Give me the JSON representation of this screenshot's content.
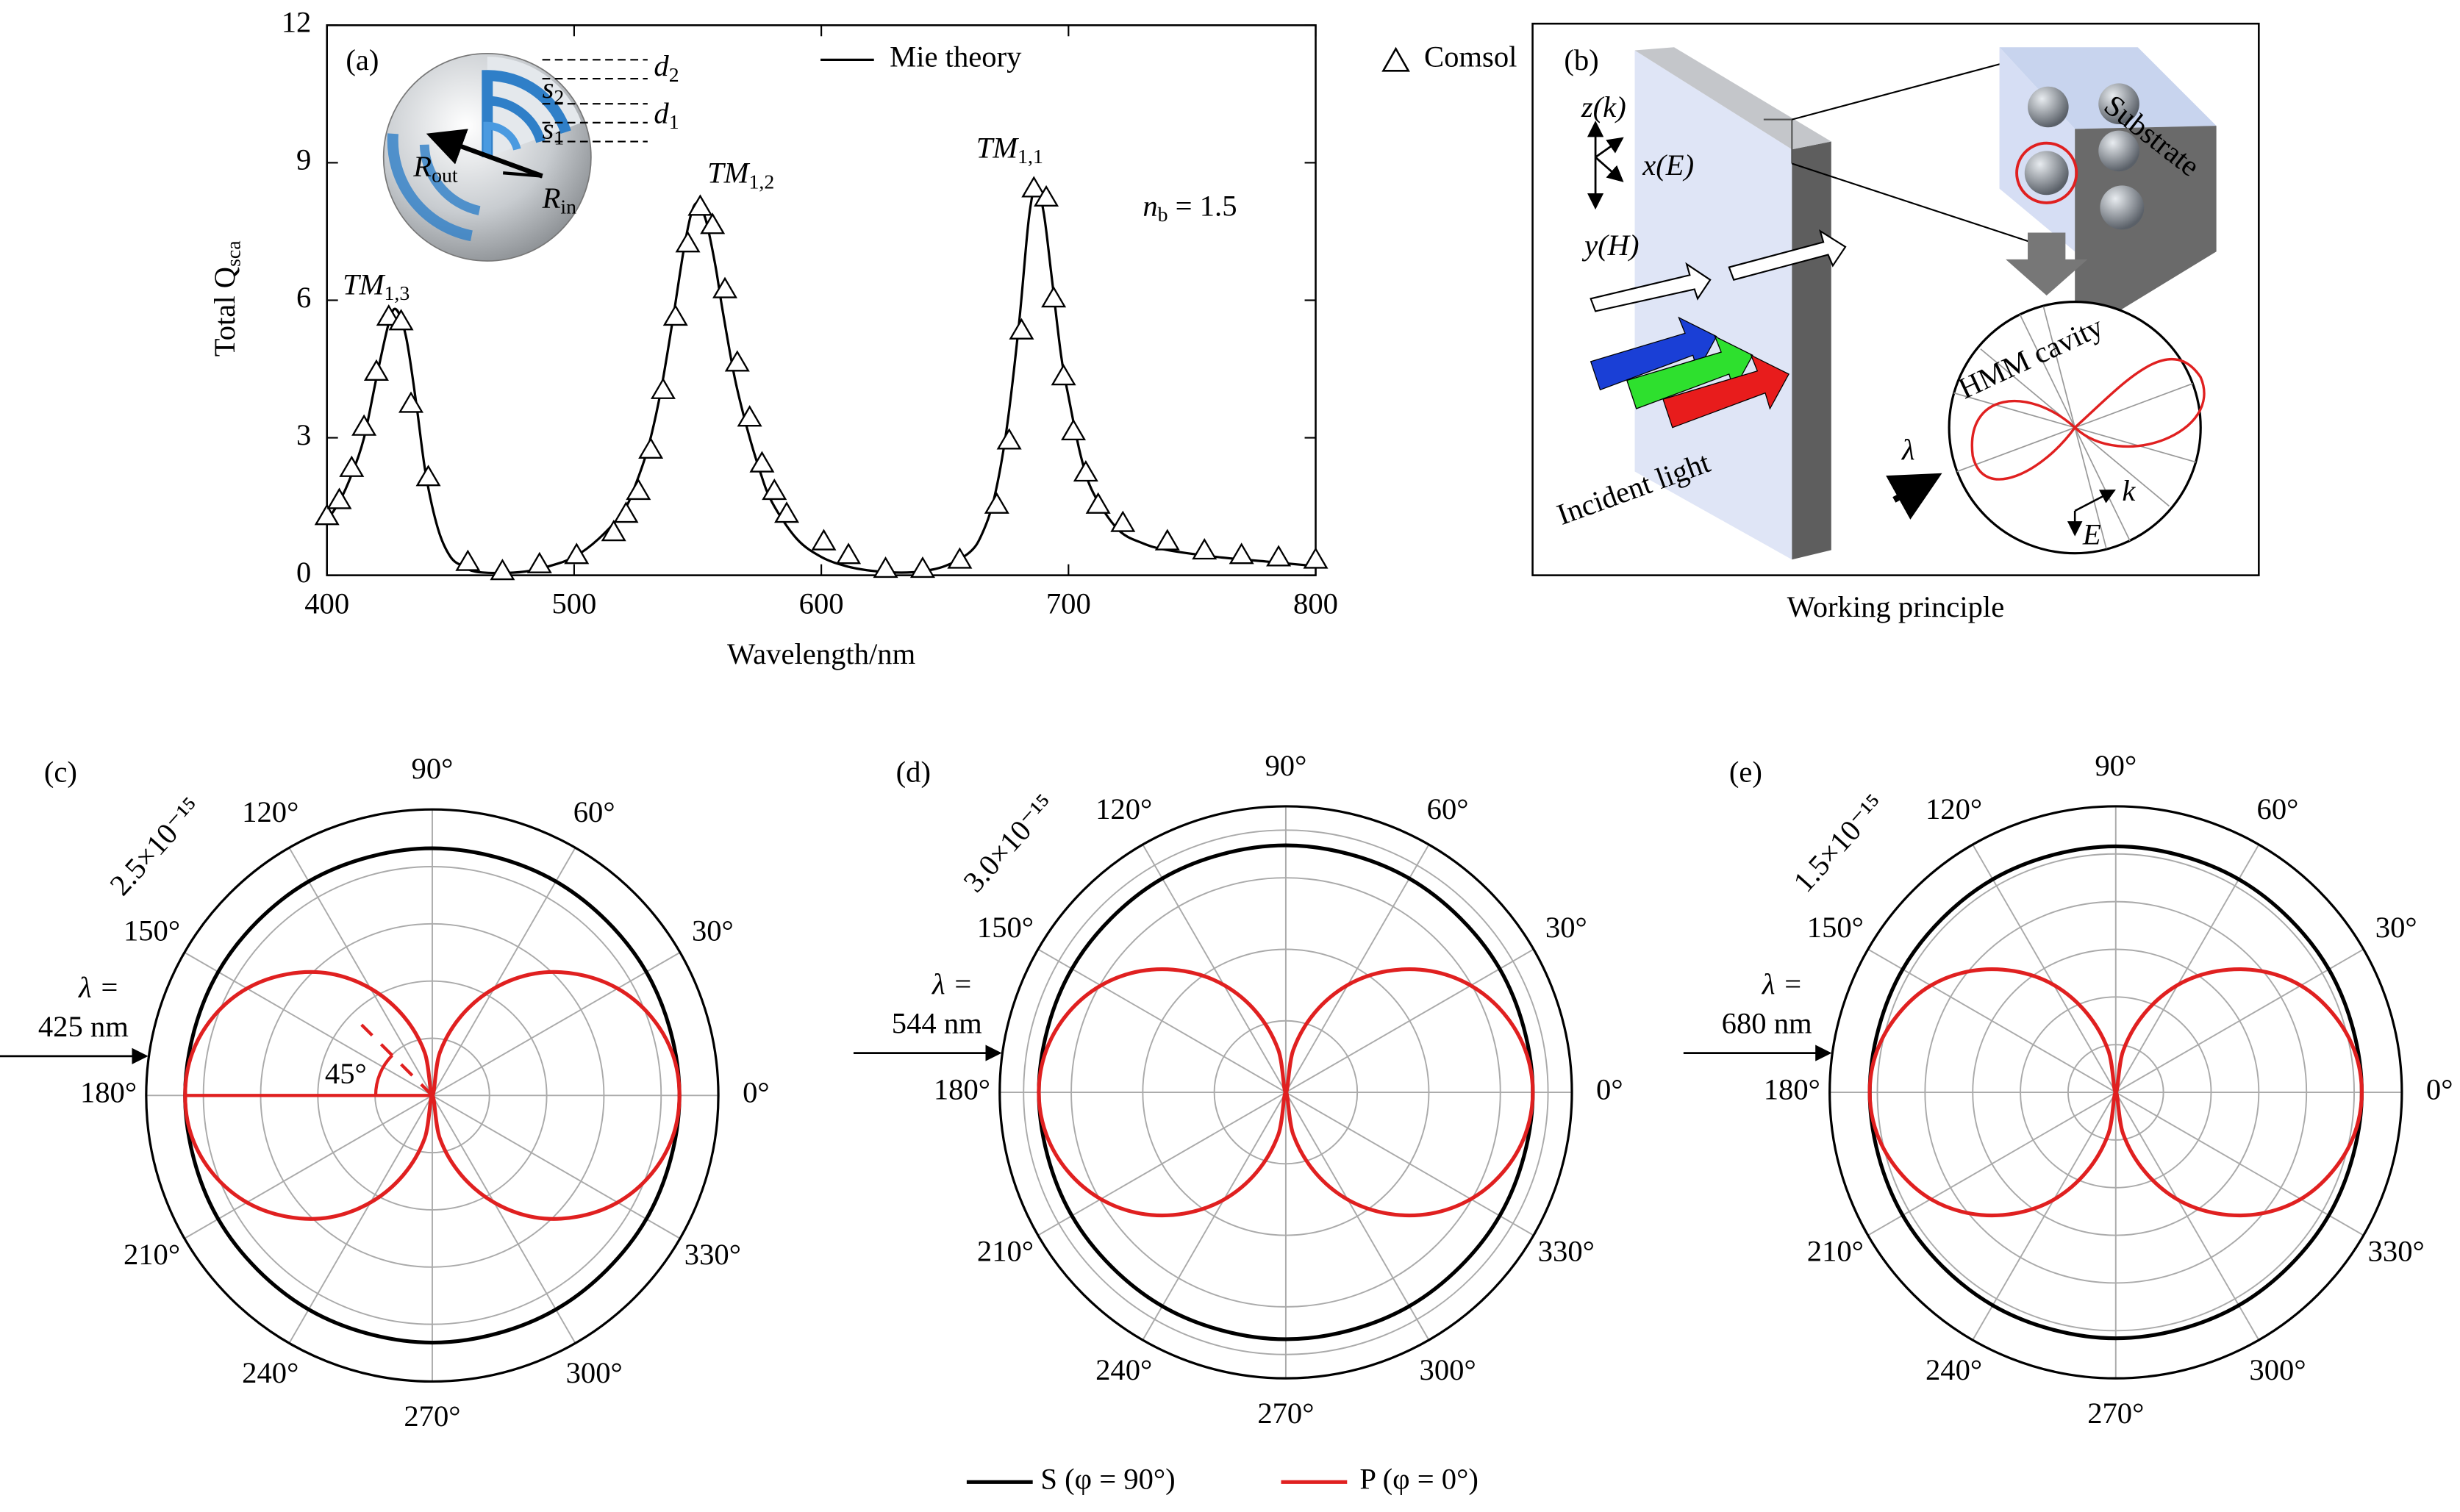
{
  "chart_data": [
    {
      "type": "line",
      "panel_label": "(a)",
      "xlabel": "Wavelength/nm",
      "ylabel": "Total Q",
      "ylabel_sub": "sca",
      "xlim": [
        400,
        800
      ],
      "xticks": [
        400,
        500,
        600,
        700,
        800
      ],
      "ylim": [
        0,
        12
      ],
      "yticks": [
        0,
        3,
        6,
        9,
        12
      ],
      "legend": "upper right",
      "series": [
        {
          "name": "Mie theory",
          "color": "#000000",
          "marker": "none",
          "x": [
            400,
            405,
            410,
            415,
            420,
            425,
            428,
            432,
            436,
            440,
            445,
            450,
            455,
            460,
            470,
            480,
            490,
            500,
            510,
            520,
            525,
            530,
            535,
            540,
            545,
            549,
            553,
            557,
            560,
            565,
            570,
            575,
            580,
            590,
            600,
            610,
            620,
            630,
            640,
            650,
            660,
            665,
            670,
            675,
            680,
            684,
            687,
            690,
            693,
            697,
            700,
            705,
            710,
            720,
            730,
            740,
            760,
            780,
            800
          ],
          "values": [
            1.2,
            1.6,
            2.2,
            3.0,
            4.3,
            5.5,
            5.8,
            5.2,
            3.8,
            2.2,
            1.0,
            0.4,
            0.2,
            0.08,
            0.05,
            0.08,
            0.2,
            0.4,
            0.8,
            1.4,
            2.0,
            2.8,
            4.0,
            5.6,
            7.3,
            8.1,
            7.8,
            6.8,
            5.8,
            4.3,
            3.2,
            2.3,
            1.6,
            0.8,
            0.4,
            0.2,
            0.1,
            0.06,
            0.08,
            0.2,
            0.5,
            0.9,
            1.7,
            3.2,
            5.5,
            7.8,
            8.5,
            7.9,
            6.6,
            4.8,
            3.9,
            2.6,
            1.8,
            1.0,
            0.7,
            0.55,
            0.4,
            0.3,
            0.2
          ]
        },
        {
          "name": "Comsol",
          "color": "#000000",
          "marker": "triangle",
          "x": [
            400,
            405,
            410,
            415,
            420,
            425,
            430,
            434,
            441,
            457,
            471,
            486,
            501,
            516,
            521,
            526,
            531,
            536,
            541,
            546,
            551,
            556,
            561,
            566,
            571,
            576,
            581,
            586,
            601,
            611,
            626,
            641,
            656,
            671,
            676,
            681,
            686,
            691,
            694,
            698,
            702,
            707,
            712,
            722,
            740,
            755,
            770,
            785,
            800
          ],
          "values": [
            1.25,
            1.6,
            2.3,
            3.2,
            4.4,
            5.6,
            5.5,
            3.7,
            2.1,
            0.25,
            0.05,
            0.2,
            0.4,
            0.9,
            1.3,
            1.8,
            2.7,
            4.0,
            5.6,
            7.2,
            8.0,
            7.6,
            6.2,
            4.6,
            3.4,
            2.4,
            1.8,
            1.3,
            0.7,
            0.4,
            0.1,
            0.1,
            0.3,
            1.5,
            2.9,
            5.3,
            8.4,
            8.2,
            6.0,
            4.3,
            3.1,
            2.2,
            1.5,
            1.1,
            0.7,
            0.5,
            0.4,
            0.35,
            0.3
          ]
        }
      ],
      "annotations": [
        {
          "text": "TM",
          "sub": "1,3"
        },
        {
          "text": "TM",
          "sub": "1,2"
        },
        {
          "text": "TM",
          "sub": "1,1"
        },
        {
          "text": "n",
          "sub": "b",
          "rest": " = 1.5"
        }
      ],
      "inset_labels": [
        {
          "text": "s",
          "sub": "2"
        },
        {
          "text": "s",
          "sub": "1"
        },
        {
          "text": "d",
          "sub": "2"
        },
        {
          "text": "d",
          "sub": "1"
        },
        {
          "text": "R",
          "sub": "out"
        },
        {
          "text": "R",
          "sub": "in"
        }
      ]
    },
    {
      "type": "polar",
      "panel_label": "(c)",
      "grid": true,
      "rlim": [
        0,
        2.5e-15
      ],
      "rticks": [
        {
          "value": 2.5e-15,
          "label": "2.5×10⁻¹⁵"
        }
      ],
      "rgrid": [
        5e-16,
        1e-15,
        1.5e-15,
        2e-15
      ],
      "thetaticks": [
        {
          "value": 0,
          "label": "0°"
        },
        {
          "value": 30,
          "label": "30°"
        },
        {
          "value": 60,
          "label": "60°"
        },
        {
          "value": 90,
          "label": "90°"
        },
        {
          "value": 120,
          "label": "120°"
        },
        {
          "value": 150,
          "label": "150°"
        },
        {
          "value": 180,
          "label": "180°"
        },
        {
          "value": 210,
          "label": "210°"
        },
        {
          "value": 240,
          "label": "240°"
        },
        {
          "value": 270,
          "label": "270°"
        },
        {
          "value": 300,
          "label": "300°"
        },
        {
          "value": 330,
          "label": "330°"
        }
      ],
      "annotations": {
        "lambda": "λ =",
        "wavelength": "425 nm",
        "angle": "45°"
      },
      "series": [
        {
          "name": "S (φ = 90°)",
          "color": "#000000",
          "theta": [
            0,
            30,
            60,
            90,
            120,
            150,
            180,
            210,
            240,
            270,
            300,
            330,
            360
          ],
          "values": [
            2.16e-15,
            2.16e-15,
            2.16e-15,
            2.16e-15,
            2.16e-15,
            2.16e-15,
            2.16e-15,
            2.16e-15,
            2.16e-15,
            2.16e-15,
            2.16e-15,
            2.16e-15,
            2.16e-15
          ]
        },
        {
          "name": "P (φ = 0°)",
          "color": "#e02020",
          "theta": [
            0,
            10,
            20,
            30,
            40,
            50,
            60,
            70,
            80,
            90,
            100,
            110,
            120,
            130,
            140,
            150,
            160,
            170,
            180,
            190,
            200,
            210,
            220,
            230,
            240,
            250,
            260,
            270,
            280,
            290,
            300,
            310,
            320,
            330,
            340,
            350,
            360
          ],
          "values": [
            2.16e-15,
            2.13e-15,
            2.03e-15,
            1.87e-15,
            1.65e-15,
            1.39e-15,
            1.08e-15,
            7.4e-16,
            3.8e-16,
            0,
            3.8e-16,
            7.4e-16,
            1.08e-15,
            1.39e-15,
            1.65e-15,
            1.87e-15,
            2.03e-15,
            2.13e-15,
            2.16e-15,
            2.13e-15,
            2.03e-15,
            1.87e-15,
            1.65e-15,
            1.39e-15,
            1.08e-15,
            7.4e-16,
            3.8e-16,
            0,
            3.8e-16,
            7.4e-16,
            1.08e-15,
            1.39e-15,
            1.65e-15,
            1.87e-15,
            2.03e-15,
            2.13e-15,
            2.16e-15
          ]
        }
      ]
    },
    {
      "type": "polar",
      "panel_label": "(d)",
      "grid": true,
      "rlim": [
        0,
        3e-15
      ],
      "rticks": [
        {
          "value": 3e-15,
          "label": "3.0×10⁻¹⁵"
        }
      ],
      "rgrid": [
        7.5e-16,
        1.5e-15,
        2.25e-15,
        2.75e-15
      ],
      "thetaticks": [
        {
          "value": 0,
          "label": "0°"
        },
        {
          "value": 30,
          "label": "30°"
        },
        {
          "value": 60,
          "label": "60°"
        },
        {
          "value": 90,
          "label": "90°"
        },
        {
          "value": 120,
          "label": "120°"
        },
        {
          "value": 150,
          "label": "150°"
        },
        {
          "value": 180,
          "label": "180°"
        },
        {
          "value": 210,
          "label": "210°"
        },
        {
          "value": 240,
          "label": "240°"
        },
        {
          "value": 270,
          "label": "270°"
        },
        {
          "value": 300,
          "label": "300°"
        },
        {
          "value": 330,
          "label": "330°"
        }
      ],
      "annotations": {
        "lambda": "λ =",
        "wavelength": "544 nm"
      },
      "series": [
        {
          "color": "#000000",
          "theta": [
            0,
            30,
            60,
            90,
            120,
            150,
            180,
            210,
            240,
            270,
            300,
            330,
            360
          ],
          "values": [
            2.59e-15,
            2.59e-15,
            2.59e-15,
            2.59e-15,
            2.59e-15,
            2.59e-15,
            2.59e-15,
            2.59e-15,
            2.59e-15,
            2.59e-15,
            2.59e-15,
            2.59e-15,
            2.59e-15
          ]
        },
        {
          "color": "#e02020",
          "theta": [
            0,
            10,
            20,
            30,
            40,
            50,
            60,
            70,
            80,
            90,
            100,
            110,
            120,
            130,
            140,
            150,
            160,
            170,
            180,
            190,
            200,
            210,
            220,
            230,
            240,
            250,
            260,
            270,
            280,
            290,
            300,
            310,
            320,
            330,
            340,
            350,
            360
          ],
          "values": [
            2.59e-15,
            2.55e-15,
            2.43e-15,
            2.24e-15,
            1.98e-15,
            1.66e-15,
            1.3e-15,
            8.9e-16,
            4.5e-16,
            0,
            4.5e-16,
            8.9e-16,
            1.3e-15,
            1.66e-15,
            1.98e-15,
            2.24e-15,
            2.43e-15,
            2.55e-15,
            2.59e-15,
            2.55e-15,
            2.43e-15,
            2.24e-15,
            1.98e-15,
            1.66e-15,
            1.3e-15,
            8.9e-16,
            4.5e-16,
            0,
            4.5e-16,
            8.9e-16,
            1.3e-15,
            1.66e-15,
            1.98e-15,
            2.24e-15,
            2.43e-15,
            2.55e-15,
            2.59e-15
          ]
        }
      ]
    },
    {
      "type": "polar",
      "panel_label": "(e)",
      "grid": true,
      "rlim": [
        0,
        1.5e-15
      ],
      "rticks": [
        {
          "value": 1.5e-15,
          "label": "1.5×10⁻¹⁵"
        }
      ],
      "rgrid": [
        2.5e-16,
        5e-16,
        7.5e-16,
        1e-15,
        1.25e-15
      ],
      "thetaticks": [
        {
          "value": 0,
          "label": "0°"
        },
        {
          "value": 30,
          "label": "30°"
        },
        {
          "value": 60,
          "label": "60°"
        },
        {
          "value": 90,
          "label": "90°"
        },
        {
          "value": 120,
          "label": "120°"
        },
        {
          "value": 150,
          "label": "150°"
        },
        {
          "value": 180,
          "label": "180°"
        },
        {
          "value": 210,
          "label": "210°"
        },
        {
          "value": 240,
          "label": "240°"
        },
        {
          "value": 270,
          "label": "270°"
        },
        {
          "value": 300,
          "label": "300°"
        },
        {
          "value": 330,
          "label": "330°"
        }
      ],
      "annotations": {
        "lambda": "λ =",
        "wavelength": "680 nm"
      },
      "series": [
        {
          "color": "#000000",
          "theta": [
            0,
            30,
            60,
            90,
            120,
            150,
            180,
            210,
            240,
            270,
            300,
            330,
            360
          ],
          "values": [
            1.29e-15,
            1.29e-15,
            1.29e-15,
            1.29e-15,
            1.29e-15,
            1.29e-15,
            1.29e-15,
            1.29e-15,
            1.29e-15,
            1.29e-15,
            1.29e-15,
            1.29e-15,
            1.29e-15
          ]
        },
        {
          "color": "#e02020",
          "theta": [
            0,
            10,
            20,
            30,
            40,
            50,
            60,
            70,
            80,
            90,
            100,
            110,
            120,
            130,
            140,
            150,
            160,
            170,
            180,
            190,
            200,
            210,
            220,
            230,
            240,
            250,
            260,
            270,
            280,
            290,
            300,
            310,
            320,
            330,
            340,
            350,
            360
          ],
          "values": [
            1.29e-15,
            1.27e-15,
            1.21e-15,
            1.12e-15,
            9.9e-16,
            8.3e-16,
            6.5e-16,
            4.4e-16,
            2.2e-16,
            0,
            2.2e-16,
            4.4e-16,
            6.5e-16,
            8.3e-16,
            9.9e-16,
            1.12e-15,
            1.21e-15,
            1.27e-15,
            1.29e-15,
            1.27e-15,
            1.21e-15,
            1.12e-15,
            9.9e-16,
            8.3e-16,
            6.5e-16,
            4.4e-16,
            2.2e-16,
            0,
            2.2e-16,
            4.4e-16,
            6.5e-16,
            8.3e-16,
            9.9e-16,
            1.12e-15,
            1.21e-15,
            1.27e-15,
            1.29e-15
          ]
        }
      ]
    }
  ],
  "diagram": {
    "panel_label": "(b)",
    "caption": "Working principle",
    "axis_z": "z(k)",
    "axis_x": "x(E)",
    "axis_y": "y(H)",
    "substrate": "Substrate",
    "cavity": "HMM cavity",
    "incident": "Incident light",
    "lambda": "λ",
    "k": "k",
    "E": "E"
  }
}
